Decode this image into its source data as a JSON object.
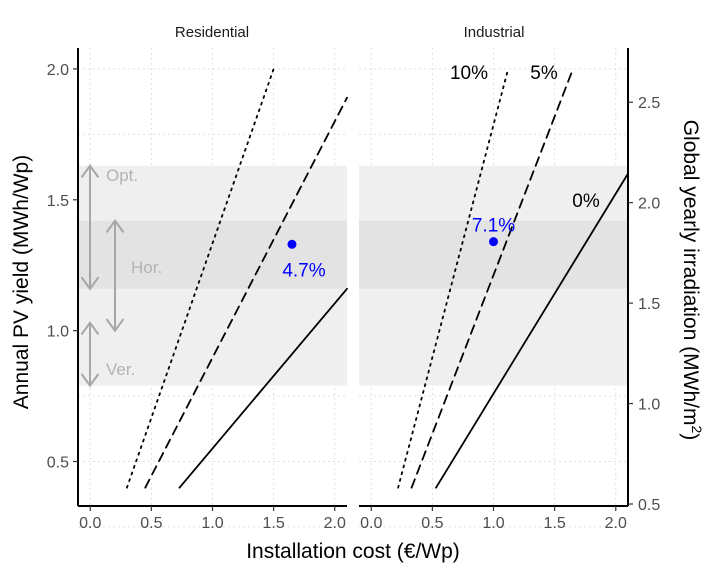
{
  "chart_data": {
    "type": "line",
    "facets": [
      {
        "title": "Residential",
        "lines": [
          {
            "label": "",
            "style": "solid",
            "x": [
              0.73,
              2.1
            ],
            "y": [
              0.4,
              1.16
            ]
          },
          {
            "label": "",
            "style": "dashed",
            "x": [
              0.45,
              2.1
            ],
            "y": [
              0.4,
              1.89
            ]
          },
          {
            "label": "",
            "style": "dotted",
            "x": [
              0.3,
              1.5
            ],
            "y": [
              0.4,
              2.0
            ]
          }
        ],
        "point": {
          "x": 1.65,
          "y": 1.33,
          "label": "4.7%"
        }
      },
      {
        "title": "Industrial",
        "lines": [
          {
            "label": "0%",
            "style": "solid",
            "x": [
              0.53,
              2.1
            ],
            "y": [
              0.4,
              1.6
            ]
          },
          {
            "label": "5%",
            "style": "dashed",
            "x": [
              0.33,
              1.65
            ],
            "y": [
              0.4,
              2.0
            ]
          },
          {
            "label": "10%",
            "style": "dotted",
            "x": [
              0.22,
              1.12
            ],
            "y": [
              0.4,
              2.0
            ]
          }
        ],
        "point": {
          "x": 1.0,
          "y": 1.34,
          "label": "7.1%"
        }
      }
    ],
    "bands": [
      {
        "label": "Opt.",
        "ymin": 1.02,
        "ymax": 1.63,
        "color": "#efefef"
      },
      {
        "label": "Hor.",
        "ymin": 1.16,
        "ymax": 1.42,
        "color": "#e3e3e3"
      },
      {
        "label": "Ver.",
        "ymin": 0.79,
        "ymax": 1.03,
        "color": "#efefef"
      }
    ],
    "xlabel": "Installation cost (€/Wp)",
    "ylabel": "Annual PV yield (MWh/Wp)",
    "y2label": "Global yearly irradiation  (MWh/m",
    "y2label_sup": "2",
    "y2label_end": ")",
    "xlim": [
      -0.1,
      2.1
    ],
    "ylim": [
      0.33,
      2.08
    ],
    "y2lim": [
      0.49,
      2.77
    ],
    "xticks": [
      "0.0",
      "0.5",
      "1.0",
      "1.5",
      "2.0"
    ],
    "yticks": [
      "0.5",
      "1.0",
      "1.5",
      "2.0"
    ],
    "y2ticks": [
      "0.5",
      "1.0",
      "1.5",
      "2.0",
      "2.5"
    ],
    "grid": true,
    "colors": {
      "point": "#0000ff",
      "band_label": "#b3b3b3",
      "arrow": "#a6a6a6",
      "grid": "#e0e0e0"
    }
  }
}
